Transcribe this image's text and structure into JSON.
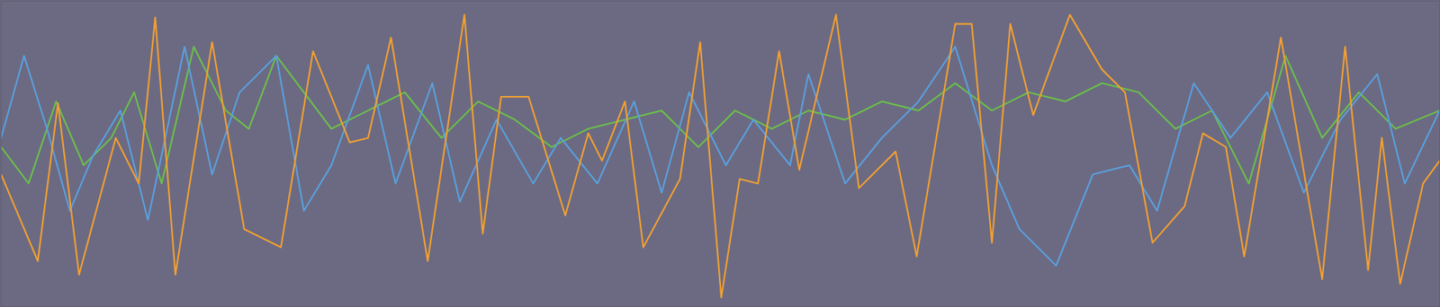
{
  "chart_data": {
    "type": "line",
    "xlim": [
      0,
      1568
    ],
    "ylim": [
      0,
      335
    ],
    "tick_labels": false,
    "grid": false,
    "series": [
      {
        "color": "#6cc04a",
        "x": [
          0,
          30,
          60,
          90,
          120,
          145,
          175,
          210,
          245,
          270,
          300,
          330,
          360,
          400,
          440,
          480,
          520,
          560,
          600,
          640,
          680,
          720,
          760,
          800,
          840,
          880,
          920,
          960,
          1000,
          1040,
          1080,
          1120,
          1160,
          1200,
          1240,
          1280,
          1320,
          1360,
          1400,
          1440,
          1480,
          1520,
          1568
        ],
        "values": [
          175,
          135,
          225,
          155,
          185,
          235,
          135,
          285,
          215,
          195,
          275,
          235,
          195,
          215,
          235,
          185,
          225,
          205,
          175,
          195,
          205,
          215,
          175,
          215,
          195,
          215,
          205,
          225,
          215,
          245,
          215,
          235,
          225,
          245,
          235,
          195,
          215,
          135,
          275,
          185,
          235,
          195,
          215
        ]
      },
      {
        "color": "#5aa0e0",
        "x": [
          0,
          25,
          50,
          75,
          100,
          130,
          160,
          200,
          230,
          260,
          300,
          330,
          360,
          400,
          430,
          470,
          500,
          540,
          580,
          610,
          650,
          690,
          720,
          750,
          790,
          820,
          860,
          880,
          920,
          960,
          1000,
          1040,
          1080,
          1110,
          1150,
          1190,
          1230,
          1260,
          1300,
          1340,
          1380,
          1420,
          1460,
          1500,
          1530,
          1568
        ],
        "values": [
          185,
          275,
          195,
          105,
          165,
          215,
          95,
          285,
          145,
          235,
          275,
          105,
          155,
          265,
          135,
          245,
          115,
          205,
          135,
          185,
          135,
          225,
          125,
          235,
          155,
          205,
          155,
          255,
          135,
          185,
          225,
          285,
          155,
          85,
          45,
          145,
          155,
          105,
          245,
          185,
          235,
          125,
          205,
          255,
          135,
          215
        ]
      },
      {
        "color": "#f5a030",
        "x": [
          0,
          40,
          62,
          85,
          125,
          150,
          168,
          190,
          230,
          265,
          305,
          340,
          380,
          400,
          425,
          465,
          505,
          525,
          545,
          575,
          615,
          640,
          655,
          680,
          700,
          740,
          762,
          785,
          805,
          825,
          848,
          870,
          910,
          935,
          975,
          998,
          1040,
          1058,
          1080,
          1100,
          1125,
          1165,
          1200,
          1225,
          1255,
          1290,
          1310,
          1335,
          1355,
          1395,
          1440,
          1465,
          1490,
          1505,
          1525,
          1550,
          1568
        ],
        "values": [
          145,
          50,
          223,
          35,
          185,
          135,
          317,
          35,
          290,
          85,
          65,
          280,
          180,
          185,
          295,
          50,
          320,
          80,
          230,
          230,
          100,
          190,
          160,
          225,
          65,
          140,
          290,
          10,
          140,
          135,
          280,
          150,
          320,
          130,
          170,
          55,
          310,
          310,
          70,
          310,
          210,
          320,
          260,
          235,
          70,
          110,
          190,
          175,
          55,
          295,
          30,
          285,
          40,
          185,
          25,
          135,
          160
        ]
      }
    ]
  }
}
